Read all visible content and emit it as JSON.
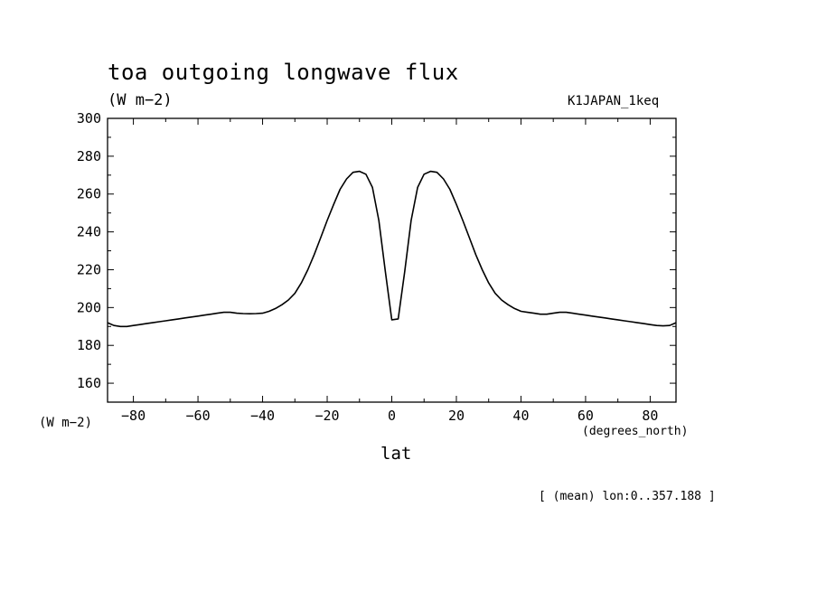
{
  "title": "toa outgoing longwave flux",
  "subtitle": "(W m−2)",
  "run_label": "K1JAPAN_1keq",
  "y_unit_label": "(W m−2)",
  "x_unit_label": "(degrees_north)",
  "x_axis_title": "lat",
  "mean_label": "[ (mean) lon:0..357.188 ]",
  "chart_data": {
    "type": "line",
    "title": "toa outgoing longwave flux",
    "xlabel": "lat",
    "ylabel": "(W m−2)",
    "xlim": [
      -88,
      88
    ],
    "ylim": [
      150,
      300
    ],
    "xticks": [
      -80,
      -60,
      -40,
      -20,
      0,
      20,
      40,
      60,
      80
    ],
    "yticks": [
      160,
      180,
      200,
      220,
      240,
      260,
      280,
      300
    ],
    "grid": false,
    "series": [
      {
        "x": [
          -88,
          -86,
          -84,
          -82,
          -80,
          -78,
          -76,
          -74,
          -72,
          -70,
          -68,
          -66,
          -64,
          -62,
          -60,
          -58,
          -56,
          -54,
          -52,
          -50,
          -48,
          -46,
          -44,
          -42,
          -40,
          -38,
          -36,
          -34,
          -32,
          -30,
          -28,
          -26,
          -24,
          -22,
          -20,
          -18,
          -16,
          -14,
          -12,
          -10,
          -8,
          -6,
          -4,
          -2,
          0,
          2,
          4,
          6,
          8,
          10,
          12,
          14,
          16,
          18,
          20,
          22,
          24,
          26,
          28,
          30,
          32,
          34,
          36,
          38,
          40,
          42,
          44,
          46,
          48,
          50,
          52,
          54,
          56,
          58,
          60,
          62,
          64,
          66,
          68,
          70,
          72,
          74,
          76,
          78,
          80,
          82,
          84,
          86,
          88
        ],
        "values": [
          192,
          190.5,
          190,
          190,
          190.5,
          191,
          191.5,
          192,
          192.5,
          193,
          193.5,
          194,
          194.5,
          195,
          195.5,
          196,
          196.5,
          197,
          197.5,
          197.5,
          197,
          196.8,
          196.7,
          196.8,
          197,
          198,
          199.5,
          201.5,
          204,
          207.5,
          213,
          220,
          228,
          237,
          246,
          254.5,
          262.5,
          268,
          271.5,
          272,
          270.5,
          263.5,
          246,
          219,
          193.5,
          194,
          219,
          246,
          263.5,
          270.5,
          272,
          271.5,
          268,
          262.5,
          254.5,
          246,
          237,
          228,
          220,
          213,
          207.5,
          204,
          201.5,
          199.5,
          198,
          197.5,
          197,
          196.5,
          196.5,
          197,
          197.5,
          197.5,
          197,
          196.5,
          196,
          195.5,
          195,
          194.5,
          194,
          193.5,
          193,
          192.5,
          192,
          191.5,
          191,
          190.5,
          190.3,
          190.5,
          192
        ]
      }
    ]
  }
}
